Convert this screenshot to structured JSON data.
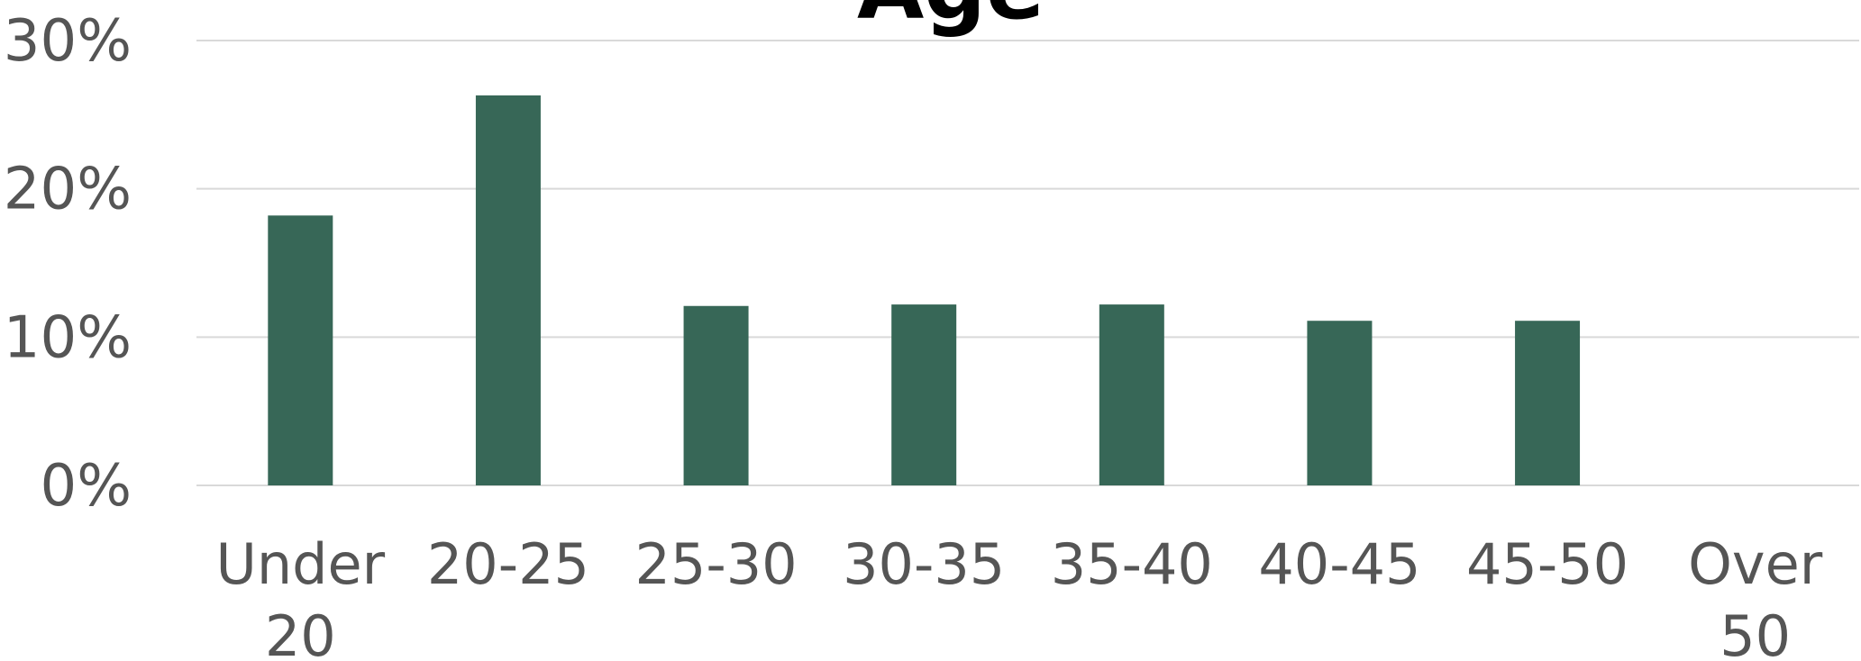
{
  "chart_data": {
    "type": "bar",
    "title": "Age",
    "xlabel": "",
    "ylabel": "",
    "categories": [
      "Under 20",
      "20-25",
      "25-30",
      "30-35",
      "35-40",
      "40-45",
      "45-50",
      "Over 50"
    ],
    "category_label_lines": [
      [
        "Under",
        "20"
      ],
      [
        "20-25"
      ],
      [
        "25-30"
      ],
      [
        "30-35"
      ],
      [
        "35-40"
      ],
      [
        "40-45"
      ],
      [
        "45-50"
      ],
      [
        "Over",
        "50"
      ]
    ],
    "values": [
      18.2,
      26.3,
      12.1,
      12.2,
      12.2,
      11.1,
      11.1,
      0
    ],
    "value_unit": "%",
    "ylim": [
      0,
      30
    ],
    "yticks": [
      0,
      10,
      20,
      30
    ],
    "ytick_labels": [
      "0%",
      "10%",
      "20%",
      "30%"
    ],
    "grid": true,
    "legend": "none",
    "bar_color": "#376757"
  }
}
